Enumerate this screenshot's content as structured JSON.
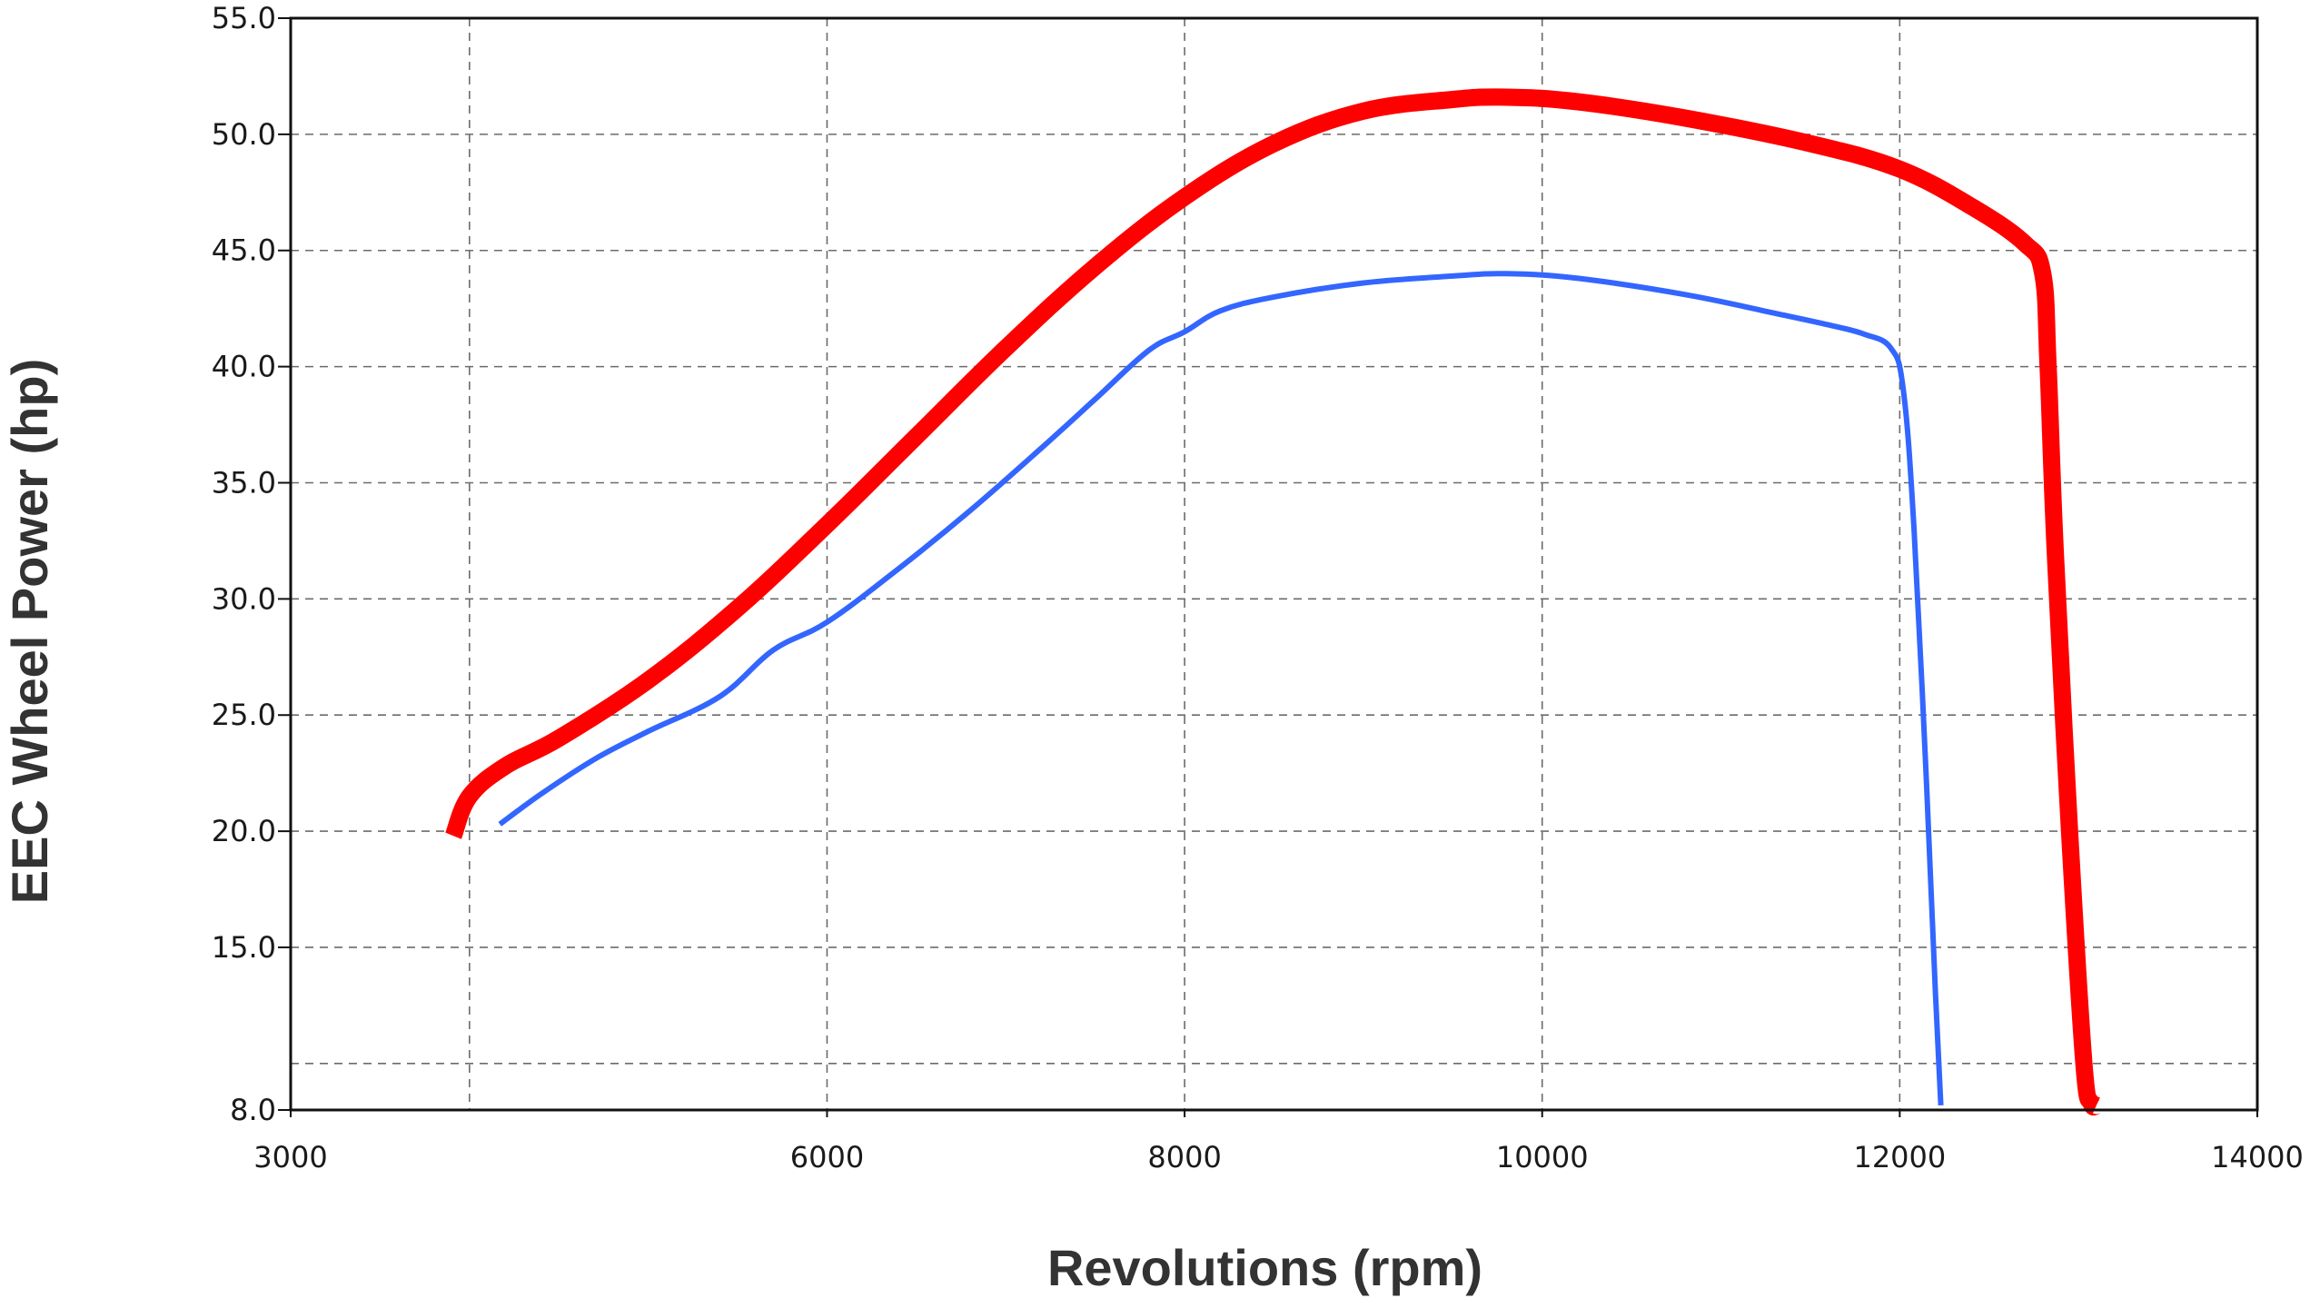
{
  "chart_data": {
    "type": "line",
    "title": "",
    "xlabel": "Revolutions (rpm)",
    "ylabel": "EEC Wheel Power (hp)",
    "xlim": [
      3000,
      14000
    ],
    "ylim": [
      8.0,
      55.0
    ],
    "x_ticks": [
      3000,
      6000,
      8000,
      10000,
      12000,
      14000
    ],
    "x_tick_labels": [
      "3000",
      "6000",
      "8000",
      "10000",
      "12000",
      "14000"
    ],
    "x_gridlines": [
      4000,
      6000,
      8000,
      10000,
      12000
    ],
    "y_ticks": [
      8.0,
      15.0,
      20.0,
      25.0,
      30.0,
      35.0,
      40.0,
      45.0,
      50.0,
      55.0
    ],
    "y_tick_labels": [
      "8.0",
      "15.0",
      "20.0",
      "25.0",
      "30.0",
      "35.0",
      "40.0",
      "45.0",
      "50.0",
      "55.0"
    ],
    "y_gridlines": [
      10.0,
      15.0,
      20.0,
      25.0,
      30.0,
      35.0,
      40.0,
      45.0,
      50.0
    ],
    "grid": true,
    "legend": "none",
    "series": [
      {
        "color": "#ff0000",
        "line_width": "thick",
        "x": [
          3910,
          4000,
          4200,
          4500,
          5000,
          5500,
          6000,
          6500,
          7000,
          7500,
          8000,
          8500,
          9000,
          9500,
          9800,
          10200,
          10800,
          11500,
          12000,
          12400,
          12700,
          12800,
          12830,
          12870,
          12950,
          13030,
          13070,
          13100
        ],
        "y": [
          19.8,
          21.5,
          22.8,
          24.0,
          26.5,
          29.6,
          33.2,
          37.0,
          40.8,
          44.3,
          47.3,
          49.6,
          51.0,
          51.5,
          51.6,
          51.4,
          50.7,
          49.6,
          48.5,
          46.9,
          45.3,
          44.0,
          40.0,
          32.0,
          20.0,
          10.0,
          8.3,
          8.2
        ]
      },
      {
        "color": "#3366ff",
        "line_width": "thin",
        "x": [
          4170,
          4400,
          4700,
          5000,
          5400,
          5700,
          6000,
          6400,
          6800,
          7200,
          7500,
          7800,
          8000,
          8200,
          8500,
          9000,
          9500,
          9800,
          10200,
          10800,
          11300,
          11600,
          11800,
          11950,
          12020,
          12080,
          12150,
          12200,
          12230
        ],
        "y": [
          20.3,
          21.6,
          23.1,
          24.3,
          25.8,
          27.8,
          29.0,
          31.3,
          33.8,
          36.5,
          38.6,
          40.7,
          41.5,
          42.4,
          43.0,
          43.6,
          43.9,
          44.0,
          43.8,
          43.1,
          42.3,
          41.8,
          41.4,
          40.8,
          39.0,
          33.0,
          22.0,
          13.0,
          8.2
        ]
      }
    ]
  }
}
